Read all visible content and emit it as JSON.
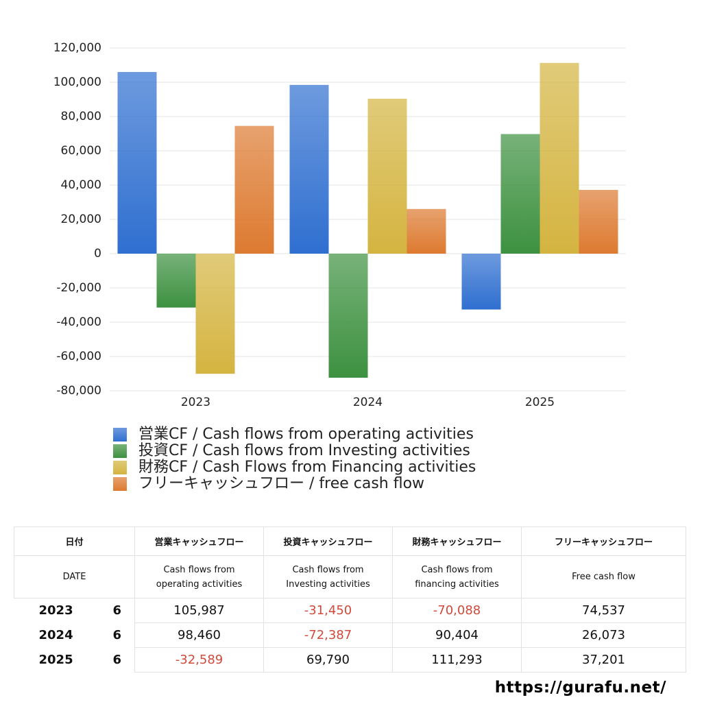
{
  "chart_data": {
    "type": "bar",
    "categories": [
      "2023",
      "2024",
      "2025"
    ],
    "series": [
      {
        "name": "営業CF / Cash flows from operating activities",
        "color": "#2f6fd0",
        "values": [
          105987,
          98460,
          -32589
        ]
      },
      {
        "name": "投資CF / Cash flows from Investing activities",
        "color": "#3d9140",
        "values": [
          -31450,
          -72387,
          69790
        ]
      },
      {
        "name": "財務CF / Cash Flows from Financing activities",
        "color": "#d4b440",
        "values": [
          -70088,
          90404,
          111293
        ]
      },
      {
        "name": "フリーキャッシュフロー / free cash flow",
        "color": "#dd7a30",
        "values": [
          74537,
          26073,
          37201
        ]
      }
    ],
    "ylim": [
      -80000,
      120000
    ],
    "yticks": [
      {
        "value": -80000,
        "label": "-80,000"
      },
      {
        "value": -60000,
        "label": "-60,000"
      },
      {
        "value": -40000,
        "label": "-40,000"
      },
      {
        "value": -20000,
        "label": "-20,000"
      },
      0,
      {
        "value": 20000,
        "label": "20,000"
      },
      {
        "value": 40000,
        "label": "40,000"
      },
      {
        "value": 60000,
        "label": "60,000"
      },
      {
        "value": 80000,
        "label": "80,000"
      },
      {
        "value": 100000,
        "label": "100,000"
      },
      {
        "value": 120000,
        "label": "120,000"
      }
    ],
    "grid": true
  },
  "table": {
    "header_ja": [
      "日付",
      "営業キャッシュフロー",
      "投資キャッシュフロー",
      "財務キャッシュフロー",
      "フリーキャッシュフロー"
    ],
    "header_en": [
      "DATE",
      "Cash flows from\noperating activities",
      "Cash flows from\nInvesting activities",
      "Cash flows from\nfinancing activities",
      "Free cash flow"
    ],
    "rows": [
      [
        "2023",
        "6",
        "105,987",
        "-31,450",
        "-70,088",
        "74,537"
      ],
      [
        "2024",
        "6",
        "98,460",
        "-72,387",
        "90,404",
        "26,073"
      ],
      [
        "2025",
        "6",
        "-32,589",
        "69,790",
        "111,293",
        "37,201"
      ]
    ]
  },
  "footer": {
    "url": "https://gurafu.net/"
  }
}
